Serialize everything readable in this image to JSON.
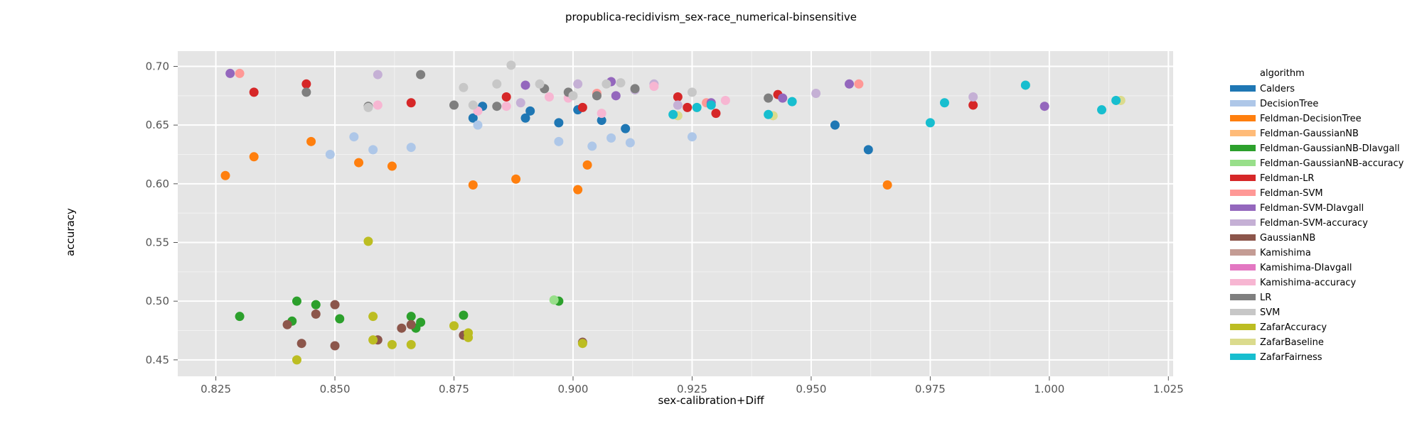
{
  "chart_data": {
    "type": "scatter",
    "title": "propublica-recidivism_sex-race_numerical-binsensitive",
    "xlabel": "sex-calibration+Diff",
    "ylabel": "accuracy",
    "xlim": [
      0.817,
      1.026
    ],
    "ylim": [
      0.436,
      0.713
    ],
    "xticks": [
      "0.825",
      "0.850",
      "0.875",
      "0.900",
      "0.925",
      "0.950",
      "0.975",
      "1.000",
      "1.025"
    ],
    "yticks": [
      "0.45",
      "0.50",
      "0.55",
      "0.60",
      "0.65",
      "0.70"
    ],
    "grid": true,
    "legend_title": "algorithm",
    "legend_position": "right",
    "series": [
      {
        "name": "Calders",
        "color": "#1f77b4",
        "points": [
          [
            0.879,
            0.656
          ],
          [
            0.881,
            0.666
          ],
          [
            0.89,
            0.656
          ],
          [
            0.891,
            0.662
          ],
          [
            0.897,
            0.652
          ],
          [
            0.901,
            0.663
          ],
          [
            0.906,
            0.654
          ],
          [
            0.911,
            0.647
          ],
          [
            0.955,
            0.65
          ],
          [
            0.962,
            0.629
          ]
        ]
      },
      {
        "name": "DecisionTree",
        "color": "#aec7e8",
        "points": [
          [
            0.849,
            0.625
          ],
          [
            0.854,
            0.64
          ],
          [
            0.858,
            0.629
          ],
          [
            0.866,
            0.631
          ],
          [
            0.88,
            0.65
          ],
          [
            0.897,
            0.636
          ],
          [
            0.904,
            0.632
          ],
          [
            0.908,
            0.639
          ],
          [
            0.912,
            0.635
          ],
          [
            0.925,
            0.64
          ]
        ]
      },
      {
        "name": "Feldman-DecisionTree",
        "color": "#ff7f0e",
        "points": [
          [
            0.827,
            0.607
          ],
          [
            0.833,
            0.623
          ],
          [
            0.845,
            0.636
          ],
          [
            0.855,
            0.618
          ],
          [
            0.862,
            0.615
          ],
          [
            0.879,
            0.599
          ],
          [
            0.888,
            0.604
          ],
          [
            0.901,
            0.595
          ],
          [
            0.903,
            0.616
          ],
          [
            0.966,
            0.599
          ]
        ]
      },
      {
        "name": "Feldman-GaussianNB",
        "color": "#ffbb78",
        "points": []
      },
      {
        "name": "Feldman-GaussianNB-DIavgall",
        "color": "#2ca02c",
        "points": [
          [
            0.83,
            0.487
          ],
          [
            0.841,
            0.483
          ],
          [
            0.842,
            0.5
          ],
          [
            0.846,
            0.497
          ],
          [
            0.851,
            0.485
          ],
          [
            0.866,
            0.487
          ],
          [
            0.867,
            0.477
          ],
          [
            0.868,
            0.482
          ],
          [
            0.877,
            0.488
          ],
          [
            0.897,
            0.5
          ]
        ]
      },
      {
        "name": "Feldman-GaussianNB-accuracy",
        "color": "#98df8a",
        "points": [
          [
            0.896,
            0.501
          ]
        ]
      },
      {
        "name": "Feldman-LR",
        "color": "#d62728",
        "points": [
          [
            0.833,
            0.678
          ],
          [
            0.844,
            0.685
          ],
          [
            0.866,
            0.669
          ],
          [
            0.886,
            0.674
          ],
          [
            0.902,
            0.665
          ],
          [
            0.922,
            0.674
          ],
          [
            0.924,
            0.665
          ],
          [
            0.93,
            0.66
          ],
          [
            0.943,
            0.676
          ],
          [
            0.984,
            0.667
          ]
        ]
      },
      {
        "name": "Feldman-SVM",
        "color": "#ff9896",
        "points": [
          [
            0.83,
            0.694
          ],
          [
            0.905,
            0.677
          ],
          [
            0.928,
            0.669
          ],
          [
            0.96,
            0.685
          ]
        ]
      },
      {
        "name": "Feldman-SVM-DIavgall",
        "color": "#9467bd",
        "points": [
          [
            0.828,
            0.694
          ],
          [
            0.89,
            0.684
          ],
          [
            0.908,
            0.687
          ],
          [
            0.909,
            0.675
          ],
          [
            0.929,
            0.669
          ],
          [
            0.944,
            0.673
          ],
          [
            0.958,
            0.685
          ],
          [
            0.999,
            0.666
          ]
        ]
      },
      {
        "name": "Feldman-SVM-accuracy",
        "color": "#c5b0d5",
        "points": [
          [
            0.859,
            0.693
          ],
          [
            0.889,
            0.669
          ],
          [
            0.901,
            0.685
          ],
          [
            0.913,
            0.68
          ],
          [
            0.917,
            0.685
          ],
          [
            0.922,
            0.667
          ],
          [
            0.951,
            0.677
          ],
          [
            0.984,
            0.674
          ]
        ]
      },
      {
        "name": "GaussianNB",
        "color": "#8c564b",
        "points": [
          [
            0.84,
            0.48
          ],
          [
            0.843,
            0.464
          ],
          [
            0.846,
            0.489
          ],
          [
            0.85,
            0.497
          ],
          [
            0.85,
            0.462
          ],
          [
            0.859,
            0.467
          ],
          [
            0.864,
            0.477
          ],
          [
            0.866,
            0.48
          ],
          [
            0.877,
            0.471
          ],
          [
            0.902,
            0.465
          ]
        ]
      },
      {
        "name": "Kamishima",
        "color": "#c49c94",
        "points": []
      },
      {
        "name": "Kamishima-DIavgall",
        "color": "#e377c2",
        "points": []
      },
      {
        "name": "Kamishima-accuracy",
        "color": "#f7b6d2",
        "points": [
          [
            0.859,
            0.667
          ],
          [
            0.88,
            0.662
          ],
          [
            0.886,
            0.666
          ],
          [
            0.895,
            0.674
          ],
          [
            0.899,
            0.673
          ],
          [
            0.906,
            0.66
          ],
          [
            0.917,
            0.683
          ],
          [
            0.932,
            0.671
          ]
        ]
      },
      {
        "name": "LR",
        "color": "#7f7f7f",
        "points": [
          [
            0.844,
            0.678
          ],
          [
            0.857,
            0.666
          ],
          [
            0.868,
            0.693
          ],
          [
            0.875,
            0.667
          ],
          [
            0.884,
            0.666
          ],
          [
            0.894,
            0.681
          ],
          [
            0.899,
            0.678
          ],
          [
            0.905,
            0.675
          ],
          [
            0.913,
            0.681
          ],
          [
            0.941,
            0.673
          ]
        ]
      },
      {
        "name": "SVM",
        "color": "#c7c7c7",
        "points": [
          [
            0.857,
            0.665
          ],
          [
            0.877,
            0.682
          ],
          [
            0.879,
            0.667
          ],
          [
            0.884,
            0.685
          ],
          [
            0.887,
            0.701
          ],
          [
            0.893,
            0.685
          ],
          [
            0.9,
            0.675
          ],
          [
            0.907,
            0.685
          ],
          [
            0.91,
            0.686
          ],
          [
            0.925,
            0.678
          ]
        ]
      },
      {
        "name": "ZafarAccuracy",
        "color": "#bcbd22",
        "points": [
          [
            0.842,
            0.45
          ],
          [
            0.857,
            0.551
          ],
          [
            0.858,
            0.487
          ],
          [
            0.858,
            0.467
          ],
          [
            0.862,
            0.463
          ],
          [
            0.866,
            0.463
          ],
          [
            0.875,
            0.479
          ],
          [
            0.878,
            0.469
          ],
          [
            0.878,
            0.473
          ],
          [
            0.902,
            0.464
          ]
        ]
      },
      {
        "name": "ZafarBaseline",
        "color": "#dbdb8d",
        "points": [
          [
            0.922,
            0.658
          ],
          [
            0.926,
            0.665
          ],
          [
            0.942,
            0.658
          ],
          [
            0.995,
            0.684
          ],
          [
            1.015,
            0.671
          ]
        ]
      },
      {
        "name": "ZafarFairness",
        "color": "#17becf",
        "points": [
          [
            0.921,
            0.659
          ],
          [
            0.926,
            0.665
          ],
          [
            0.929,
            0.667
          ],
          [
            0.941,
            0.659
          ],
          [
            0.946,
            0.67
          ],
          [
            0.975,
            0.652
          ],
          [
            0.978,
            0.669
          ],
          [
            0.995,
            0.684
          ],
          [
            1.011,
            0.663
          ],
          [
            1.014,
            0.671
          ]
        ]
      }
    ]
  }
}
